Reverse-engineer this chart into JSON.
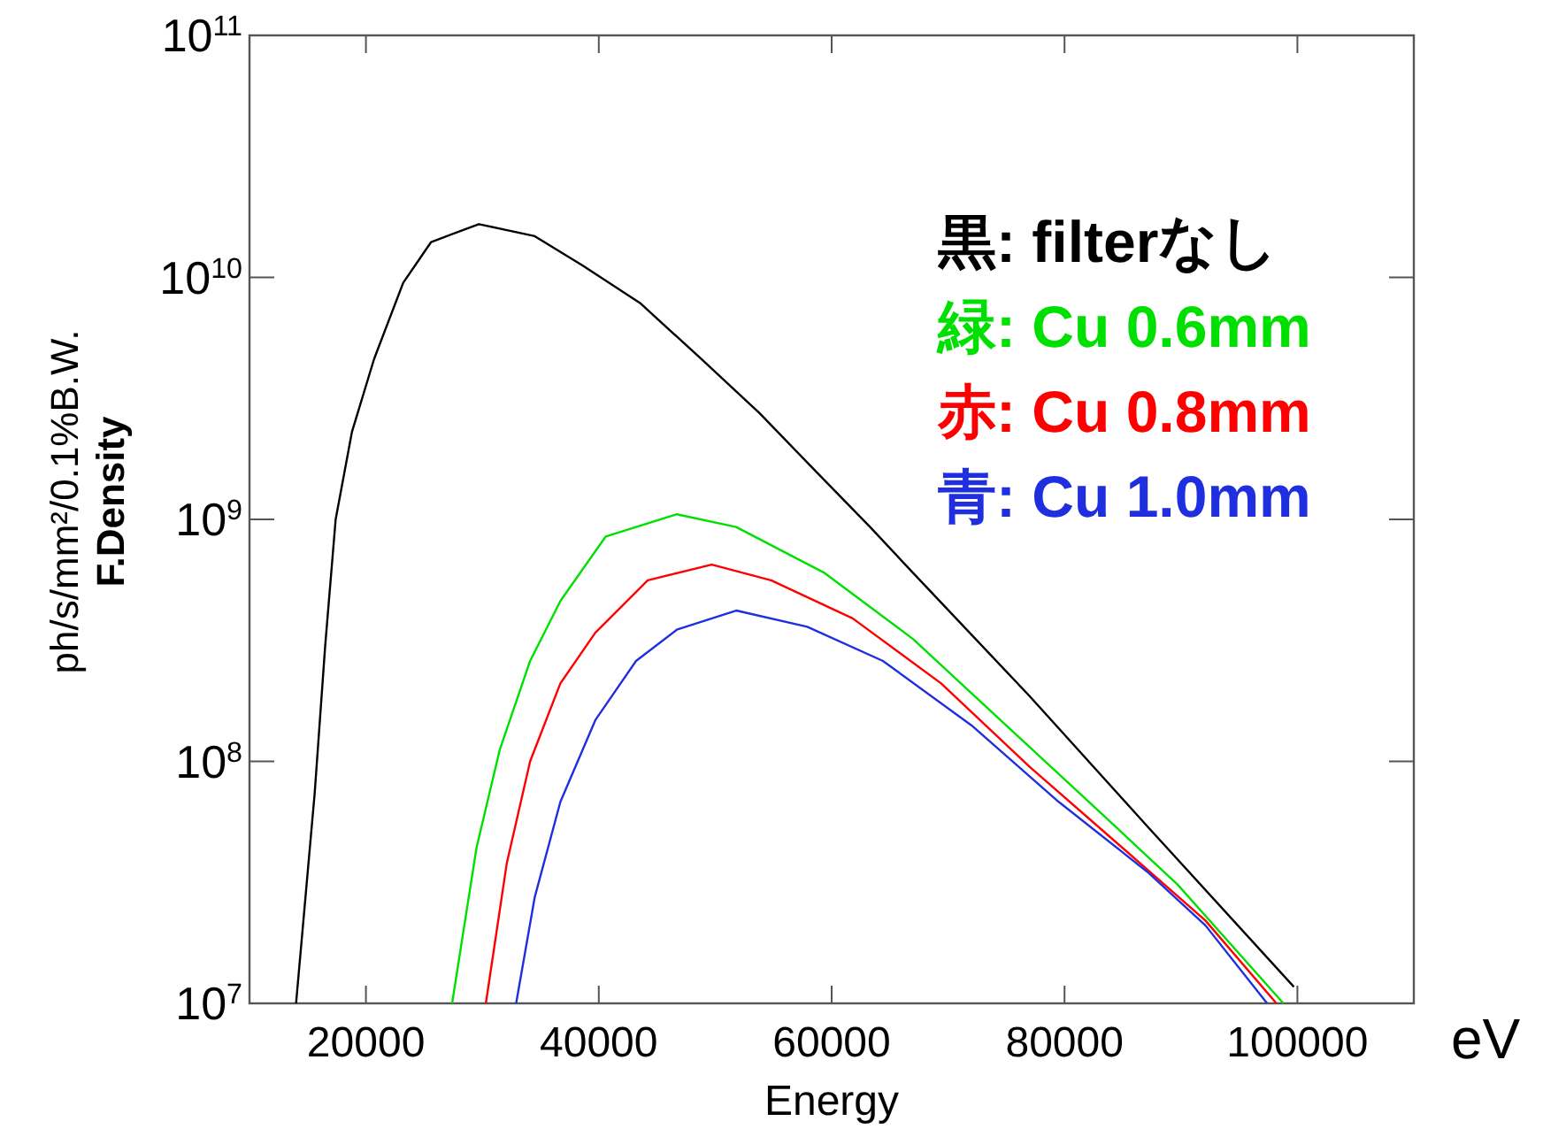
{
  "chart_data": {
    "type": "line",
    "xlabel": "Energy",
    "ylabel": "ph/s/mm²/0.1%B.W.\nF.Density",
    "log": "y",
    "legend": "top right",
    "grid": false,
    "marker": "none",
    "line_style": "solid",
    "xlim": [
      10000,
      110000
    ],
    "xticks": [
      20000,
      40000,
      60000,
      80000,
      100000
    ],
    "ylim": [
      10000000.0,
      100000000000.0
    ],
    "yticks": [
      {
        "value": 10000000.0,
        "label": "10$^{7}$"
      },
      {
        "value": 100000000.0,
        "label": "10$^{8}$"
      },
      {
        "value": 1000000000.0,
        "label": "10$^{9}$"
      },
      {
        "value": 10000000000.0,
        "label": "10$^{10}$"
      },
      {
        "value": 100000000000.0,
        "label": "10$^{11}$"
      }
    ],
    "annotations": [
      "eV"
    ],
    "series": [
      {
        "name": "黒: filterなし",
        "color": "#000000",
        "x": [
          14000,
          15600,
          16500,
          17400,
          18800,
          20700,
          23200,
          25600,
          29700,
          34500,
          38600,
          43600,
          48800,
          53800,
          58800,
          63300,
          67000,
          77000,
          87100,
          99700
        ],
        "values": [
          10000000.0,
          74000000.0,
          300000000.0,
          1000000000.0,
          2300000000.0,
          4600000000.0,
          9500000000.0,
          14000000000.0,
          16600000000.0,
          14800000000.0,
          11200000000.0,
          7800000000.0,
          4600000000.0,
          2750000000.0,
          1550000000.0,
          930000000.0,
          600000000.0,
          186000000.0,
          54000000.0,
          11700000.0
        ]
      },
      {
        "name": "緑: Cu 0.6mm",
        "color": "#00e000",
        "x": [
          27400,
          29500,
          31500,
          34100,
          36700,
          40600,
          46700,
          51800,
          59400,
          67000,
          74500,
          82100,
          89700,
          98800
        ],
        "values": [
          10000000.0,
          44000000.0,
          112000000.0,
          260000000.0,
          460000000.0,
          850000000.0,
          1050000000.0,
          930000000.0,
          600000000.0,
          320000000.0,
          148000000.0,
          68000000.0,
          31000000.0,
          10000000.0
        ]
      },
      {
        "name": "赤: Cu 0.8mm",
        "color": "#ff0000",
        "x": [
          30300,
          32100,
          34100,
          36700,
          39700,
          44200,
          49700,
          54800,
          61800,
          69400,
          77000,
          84500,
          92100,
          98200
        ],
        "values": [
          10000000.0,
          38000000.0,
          100000000.0,
          210000000.0,
          340000000.0,
          560000000.0,
          650000000.0,
          560000000.0,
          390000000.0,
          210000000.0,
          95000000.0,
          46000000.0,
          22000000.0,
          10000000.0
        ]
      },
      {
        "name": "青: Cu 1.0mm",
        "color": "#1f2fe0",
        "x": [
          32900,
          34500,
          36700,
          39700,
          43200,
          46700,
          51800,
          57900,
          64400,
          72000,
          79500,
          87100,
          92100,
          97400
        ],
        "values": [
          10000000.0,
          27500000.0,
          68000000.0,
          148000000.0,
          260000000.0,
          350000000.0,
          420000000.0,
          360000000.0,
          260000000.0,
          141000000.0,
          68000000.0,
          35000000.0,
          21000000.0,
          10000000.0
        ]
      }
    ]
  }
}
